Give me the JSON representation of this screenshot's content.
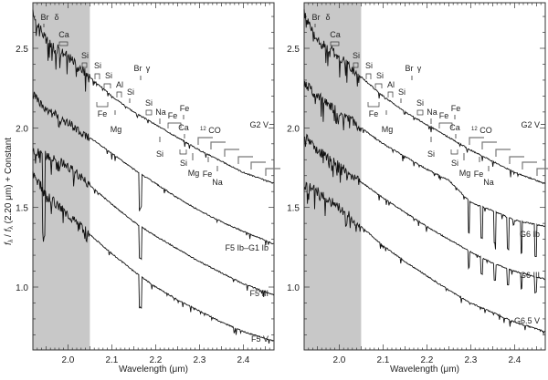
{
  "chart_data": [
    {
      "type": "line",
      "panel": "left",
      "xlabel": "Wavelength (μm)",
      "ylabel": "f_λ / f_λ (2.20 μm) + Constant",
      "xlim": [
        1.92,
        2.47
      ],
      "ylim": [
        0.6,
        2.8
      ],
      "xticks": [
        "2.0",
        "2.1",
        "2.2",
        "2.3",
        "2.4"
      ],
      "yticks": [
        "1.0",
        "1.5",
        "2.0",
        "2.5"
      ],
      "shaded_region": [
        1.92,
        2.05
      ],
      "series": [
        {
          "name": "G2 V",
          "x": [
            1.92,
            1.95,
            2.0,
            2.05,
            2.1,
            2.15,
            2.2,
            2.25,
            2.3,
            2.35,
            2.4,
            2.47
          ],
          "values": [
            2.72,
            2.55,
            2.45,
            2.32,
            2.2,
            2.1,
            2.02,
            1.94,
            1.86,
            1.79,
            1.72,
            1.65
          ]
        },
        {
          "name": "F5 Ib–G1 Ib",
          "x": [
            1.92,
            1.95,
            2.0,
            2.05,
            2.1,
            2.15,
            2.2,
            2.25,
            2.3,
            2.35,
            2.4,
            2.47
          ],
          "values": [
            2.22,
            2.12,
            2.03,
            1.94,
            1.84,
            1.74,
            1.65,
            1.56,
            1.48,
            1.41,
            1.35,
            1.27
          ]
        },
        {
          "name": "F5 III",
          "x": [
            1.92,
            1.95,
            2.0,
            2.05,
            2.1,
            2.15,
            2.2,
            2.25,
            2.3,
            2.35,
            2.4,
            2.47
          ],
          "values": [
            1.86,
            1.83,
            1.76,
            1.64,
            1.52,
            1.41,
            1.32,
            1.24,
            1.16,
            1.09,
            1.02,
            0.95
          ]
        },
        {
          "name": "F5 V",
          "x": [
            1.92,
            1.95,
            2.0,
            2.05,
            2.1,
            2.15,
            2.2,
            2.25,
            2.3,
            2.35,
            2.4,
            2.47
          ],
          "values": [
            1.72,
            1.58,
            1.46,
            1.33,
            1.21,
            1.1,
            1.0,
            0.92,
            0.85,
            0.78,
            0.72,
            0.66
          ]
        }
      ]
    },
    {
      "type": "line",
      "panel": "right",
      "xlabel": "Wavelength (μm)",
      "xlim": [
        1.92,
        2.47
      ],
      "ylim": [
        0.6,
        2.8
      ],
      "xticks": [
        "2.0",
        "2.1",
        "2.2",
        "2.3",
        "2.4"
      ],
      "yticks": [
        "1.0",
        "1.5",
        "2.0",
        "2.5"
      ],
      "shaded_region": [
        1.92,
        2.05
      ],
      "series": [
        {
          "name": "G2 V",
          "x": [
            1.92,
            1.95,
            2.0,
            2.05,
            2.1,
            2.15,
            2.2,
            2.25,
            2.3,
            2.35,
            2.4,
            2.47
          ],
          "values": [
            2.72,
            2.55,
            2.45,
            2.32,
            2.2,
            2.1,
            2.02,
            1.94,
            1.86,
            1.79,
            1.72,
            1.65
          ]
        },
        {
          "name": "G6 Ib",
          "x": [
            1.92,
            1.95,
            2.0,
            2.05,
            2.1,
            2.15,
            2.2,
            2.25,
            2.3,
            2.35,
            2.4,
            2.47
          ],
          "values": [
            2.28,
            2.2,
            2.1,
            2.0,
            1.9,
            1.82,
            1.74,
            1.67,
            1.53,
            1.48,
            1.42,
            1.38
          ]
        },
        {
          "name": "G6 III",
          "x": [
            1.92,
            1.95,
            2.0,
            2.05,
            2.1,
            2.15,
            2.2,
            2.25,
            2.3,
            2.35,
            2.4,
            2.47
          ],
          "values": [
            1.95,
            1.86,
            1.76,
            1.66,
            1.56,
            1.47,
            1.38,
            1.3,
            1.22,
            1.15,
            1.1,
            1.05
          ]
        },
        {
          "name": "G6.5 V",
          "x": [
            1.92,
            1.95,
            2.0,
            2.05,
            2.1,
            2.15,
            2.2,
            2.25,
            2.3,
            2.35,
            2.4,
            2.47
          ],
          "values": [
            1.65,
            1.6,
            1.5,
            1.38,
            1.26,
            1.16,
            1.07,
            0.98,
            0.9,
            0.84,
            0.78,
            0.72
          ]
        }
      ]
    }
  ],
  "annotations": [
    {
      "label": "Br δ",
      "x": 1.945
    },
    {
      "label": "Ca",
      "x": 1.98
    },
    {
      "label": "Si",
      "x": 2.03
    },
    {
      "label": "Si",
      "x": 2.065
    },
    {
      "label": "Si",
      "x": 2.09
    },
    {
      "label": "Fe",
      "x": 2.07
    },
    {
      "label": "Al",
      "x": 2.11
    },
    {
      "label": "Mg",
      "x": 2.106
    },
    {
      "label": "Si",
      "x": 2.135
    },
    {
      "label": "Br γ",
      "x": 2.166
    },
    {
      "label": "Si",
      "x": 2.188
    },
    {
      "label": "Na",
      "x": 2.207
    },
    {
      "label": "Si",
      "x": 2.207
    },
    {
      "label": "Fe",
      "x": 2.24
    },
    {
      "label": "Fe",
      "x": 2.263
    },
    {
      "label": "Ca",
      "x": 2.263
    },
    {
      "label": "Si",
      "x": 2.26
    },
    {
      "label": "Mg",
      "x": 2.281
    },
    {
      "label": "¹²CO",
      "x": 2.3
    },
    {
      "label": "Fe",
      "x": 2.31
    },
    {
      "label": "Na",
      "x": 2.34
    }
  ],
  "labels": {
    "xlabel": "Wavelength (μm)",
    "ylabel_main": "f",
    "ylabel_full": "f_λ / f_λ (2.20 μm) + Constant",
    "left_stars": [
      "G2  V",
      "F5 Ib–G1 Ib",
      "F5 III",
      "F5  V"
    ],
    "right_stars": [
      "G2  V",
      "G6 Ib",
      "G6 III",
      "G6.5  V"
    ]
  }
}
